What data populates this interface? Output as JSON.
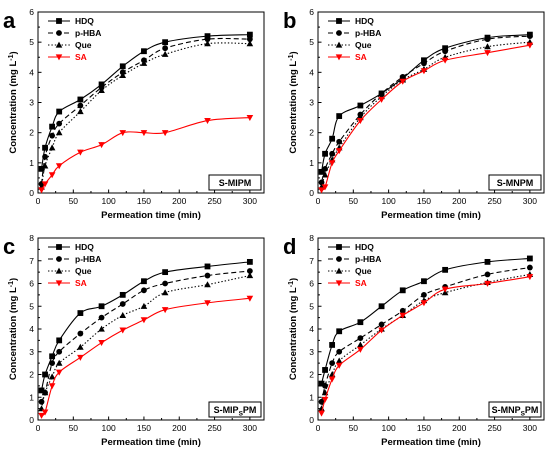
{
  "colors": {
    "black": "#000000",
    "red": "#ff0000",
    "background": "#ffffff"
  },
  "shared": {
    "xlabel": "Permeation time (min)",
    "ylabel_main": "Concentration (mg L",
    "ylabel_sup": "-1",
    "ylabel_end": ")"
  },
  "chart_data": [
    {
      "type": "line",
      "panel_letter": "a",
      "tag": {
        "pre": "S-MIPM",
        "sub": "",
        "post": ""
      },
      "xlim": [
        0,
        320
      ],
      "ylim": [
        0,
        6
      ],
      "x_ticks": [
        0,
        50,
        100,
        150,
        200,
        250,
        300
      ],
      "y_ticks": [
        0,
        1,
        2,
        3,
        4,
        5,
        6
      ],
      "x": [
        5,
        10,
        20,
        30,
        60,
        90,
        120,
        150,
        180,
        240,
        300
      ],
      "series": [
        {
          "name": "HDQ",
          "color": "#000000",
          "marker": "square",
          "dash": "solid",
          "values": [
            0.8,
            1.5,
            2.2,
            2.7,
            3.1,
            3.6,
            4.2,
            4.7,
            5.0,
            5.2,
            5.25
          ]
        },
        {
          "name": "p-HBA",
          "color": "#000000",
          "marker": "circle",
          "dash": "dashed",
          "values": [
            0.3,
            1.2,
            1.9,
            2.3,
            2.9,
            3.5,
            4.0,
            4.4,
            4.8,
            5.1,
            5.1
          ]
        },
        {
          "name": "Que",
          "color": "#000000",
          "marker": "triangle",
          "dash": "dotted",
          "values": [
            0.2,
            0.9,
            1.5,
            2.0,
            2.7,
            3.4,
            3.9,
            4.3,
            4.6,
            4.95,
            4.95
          ]
        },
        {
          "name": "SA",
          "color": "#ff0000",
          "marker": "triangle-down",
          "dash": "solid",
          "values": [
            0.1,
            0.3,
            0.6,
            0.9,
            1.35,
            1.6,
            2.0,
            2.0,
            2.0,
            2.4,
            2.5
          ]
        }
      ]
    },
    {
      "type": "line",
      "panel_letter": "b",
      "tag": {
        "pre": "S-MNPM",
        "sub": "",
        "post": ""
      },
      "xlim": [
        0,
        320
      ],
      "ylim": [
        0,
        6
      ],
      "x_ticks": [
        0,
        50,
        100,
        150,
        200,
        250,
        300
      ],
      "y_ticks": [
        0,
        1,
        2,
        3,
        4,
        5,
        6
      ],
      "x": [
        5,
        10,
        20,
        30,
        60,
        90,
        120,
        150,
        180,
        240,
        300
      ],
      "series": [
        {
          "name": "HDQ",
          "color": "#000000",
          "marker": "square",
          "dash": "solid",
          "values": [
            0.7,
            1.3,
            1.8,
            2.55,
            2.9,
            3.3,
            3.8,
            4.4,
            4.8,
            5.15,
            5.25
          ]
        },
        {
          "name": "p-HBA",
          "color": "#000000",
          "marker": "circle",
          "dash": "dashed",
          "values": [
            0.35,
            0.8,
            1.3,
            1.7,
            2.6,
            3.3,
            3.85,
            4.3,
            4.7,
            5.1,
            5.2
          ]
        },
        {
          "name": "Que",
          "color": "#000000",
          "marker": "triangle",
          "dash": "dotted",
          "values": [
            0.2,
            0.6,
            1.1,
            1.5,
            2.5,
            3.2,
            3.75,
            4.1,
            4.5,
            4.85,
            5.0
          ]
        },
        {
          "name": "SA",
          "color": "#ff0000",
          "marker": "triangle-down",
          "dash": "solid",
          "values": [
            0.1,
            0.2,
            1.0,
            1.4,
            2.4,
            3.1,
            3.7,
            4.05,
            4.4,
            4.65,
            4.9
          ]
        }
      ]
    },
    {
      "type": "line",
      "panel_letter": "c",
      "tag": {
        "pre": "S-MIP",
        "sub": "S",
        "post": "PM"
      },
      "xlim": [
        0,
        320
      ],
      "ylim": [
        0,
        8
      ],
      "x_ticks": [
        0,
        50,
        100,
        150,
        200,
        250,
        300
      ],
      "y_ticks": [
        0,
        1,
        2,
        3,
        4,
        5,
        6,
        7,
        8
      ],
      "x": [
        5,
        10,
        20,
        30,
        60,
        90,
        120,
        150,
        180,
        240,
        300
      ],
      "series": [
        {
          "name": "HDQ",
          "color": "#000000",
          "marker": "square",
          "dash": "solid",
          "values": [
            1.3,
            2.0,
            2.8,
            3.5,
            4.7,
            5.0,
            5.5,
            6.1,
            6.5,
            6.75,
            6.95
          ]
        },
        {
          "name": "p-HBA",
          "color": "#000000",
          "marker": "circle",
          "dash": "dashed",
          "values": [
            0.8,
            1.2,
            2.5,
            3.0,
            3.8,
            4.5,
            5.1,
            5.7,
            6.0,
            6.35,
            6.55
          ]
        },
        {
          "name": "Que",
          "color": "#000000",
          "marker": "triangle",
          "dash": "dotted",
          "values": [
            0.5,
            1.2,
            1.9,
            2.5,
            3.2,
            4.0,
            4.6,
            5.0,
            5.6,
            5.95,
            6.35
          ]
        },
        {
          "name": "SA",
          "color": "#ff0000",
          "marker": "triangle-down",
          "dash": "solid",
          "values": [
            0.2,
            0.35,
            1.5,
            2.1,
            2.75,
            3.4,
            3.95,
            4.4,
            4.85,
            5.15,
            5.35
          ]
        }
      ]
    },
    {
      "type": "line",
      "panel_letter": "d",
      "tag": {
        "pre": "S-MNP",
        "sub": "S",
        "post": "PM"
      },
      "xlim": [
        0,
        320
      ],
      "ylim": [
        0,
        8
      ],
      "x_ticks": [
        0,
        50,
        100,
        150,
        200,
        250,
        300
      ],
      "y_ticks": [
        0,
        1,
        2,
        3,
        4,
        5,
        6,
        7,
        8
      ],
      "x": [
        5,
        10,
        20,
        30,
        60,
        90,
        120,
        150,
        180,
        240,
        300
      ],
      "series": [
        {
          "name": "HDQ",
          "color": "#000000",
          "marker": "square",
          "dash": "solid",
          "values": [
            1.6,
            2.2,
            3.3,
            3.9,
            4.3,
            5.0,
            5.7,
            6.1,
            6.6,
            6.95,
            7.1
          ]
        },
        {
          "name": "p-HBA",
          "color": "#000000",
          "marker": "circle",
          "dash": "dashed",
          "values": [
            0.8,
            1.5,
            2.5,
            3.0,
            3.6,
            4.2,
            4.8,
            5.5,
            5.85,
            6.4,
            6.7
          ]
        },
        {
          "name": "Que",
          "color": "#000000",
          "marker": "triangle",
          "dash": "dotted",
          "values": [
            0.5,
            1.2,
            2.0,
            2.6,
            3.3,
            4.0,
            4.6,
            5.25,
            5.6,
            6.05,
            6.4
          ]
        },
        {
          "name": "SA",
          "color": "#ff0000",
          "marker": "triangle-down",
          "dash": "solid",
          "values": [
            0.3,
            0.9,
            1.8,
            2.4,
            3.1,
            3.95,
            4.6,
            5.15,
            5.75,
            6.0,
            6.3
          ]
        }
      ]
    }
  ]
}
